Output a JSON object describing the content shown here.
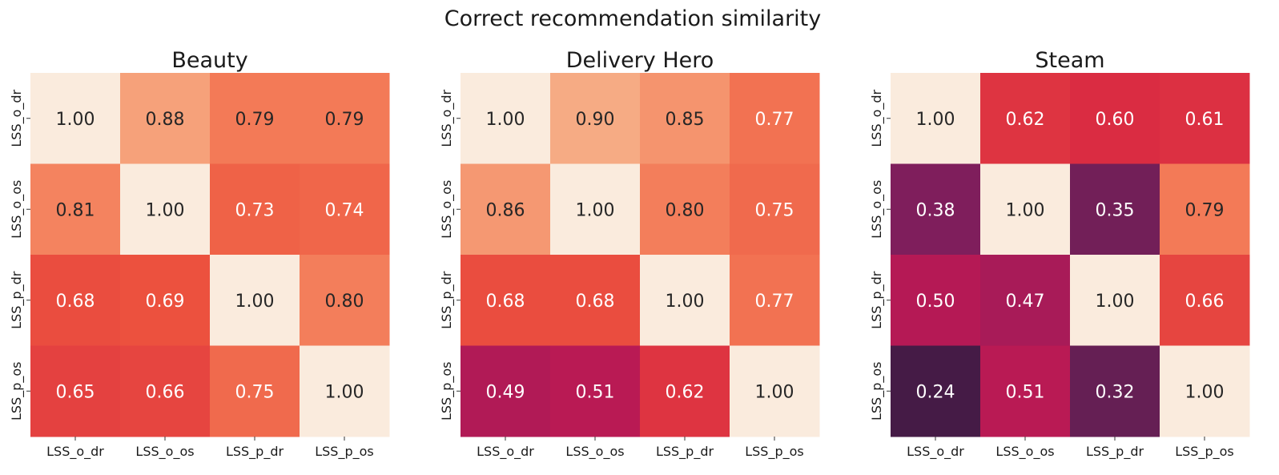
{
  "figure_title": "Correct recommendation similarity",
  "chart_data": [
    {
      "type": "heatmap",
      "title": "Beauty",
      "x_categories": [
        "LSS_o_dr",
        "LSS_o_os",
        "LSS_p_dr",
        "LSS_p_os"
      ],
      "y_categories": [
        "LSS_o_dr",
        "LSS_o_os",
        "LSS_p_dr",
        "LSS_p_os"
      ],
      "values": [
        [
          1.0,
          0.88,
          0.79,
          0.79
        ],
        [
          0.81,
          1.0,
          0.73,
          0.74
        ],
        [
          0.68,
          0.69,
          1.0,
          0.8
        ],
        [
          0.65,
          0.66,
          0.75,
          1.0
        ]
      ],
      "colorbar": false
    },
    {
      "type": "heatmap",
      "title": "Delivery Hero",
      "x_categories": [
        "LSS_o_dr",
        "LSS_o_os",
        "LSS_p_dr",
        "LSS_p_os"
      ],
      "y_categories": [
        "LSS_o_dr",
        "LSS_o_os",
        "LSS_p_dr",
        "LSS_p_os"
      ],
      "values": [
        [
          1.0,
          0.9,
          0.85,
          0.77
        ],
        [
          0.86,
          1.0,
          0.8,
          0.75
        ],
        [
          0.68,
          0.68,
          1.0,
          0.77
        ],
        [
          0.49,
          0.51,
          0.62,
          1.0
        ]
      ],
      "colorbar": false
    },
    {
      "type": "heatmap",
      "title": "Steam",
      "x_categories": [
        "LSS_o_dr",
        "LSS_o_os",
        "LSS_p_dr",
        "LSS_p_os"
      ],
      "y_categories": [
        "LSS_o_dr",
        "LSS_o_os",
        "LSS_p_dr",
        "LSS_p_os"
      ],
      "values": [
        [
          1.0,
          0.62,
          0.6,
          0.61
        ],
        [
          0.38,
          1.0,
          0.35,
          0.79
        ],
        [
          0.5,
          0.47,
          1.0,
          0.66
        ],
        [
          0.24,
          0.51,
          0.32,
          1.0
        ]
      ],
      "colorbar": false
    }
  ]
}
